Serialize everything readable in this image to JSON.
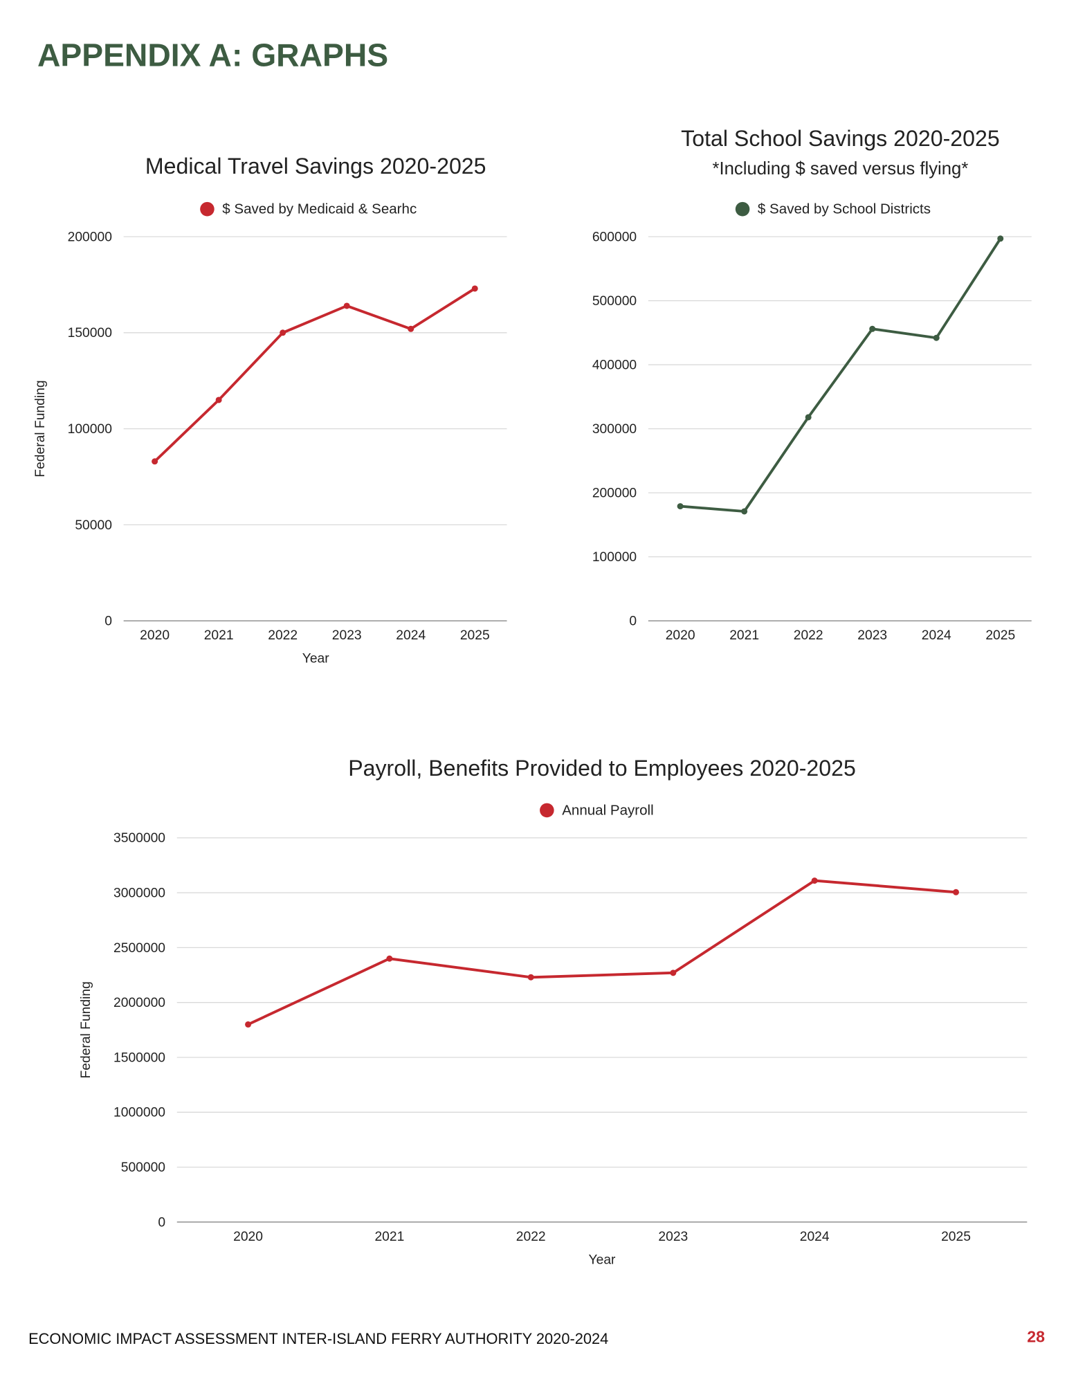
{
  "header": {
    "title": "APPENDIX A: GRAPHS"
  },
  "footer": {
    "text": "ECONOMIC IMPACT ASSESSMENT INTER-ISLAND FERRY AUTHORITY 2020-2024",
    "page_number": "28"
  },
  "colors": {
    "heading": "#3d5c42",
    "red": "#c6282f",
    "green": "#3d5c42",
    "page_number": "#c6282f"
  },
  "chart_data": [
    {
      "type": "line",
      "title": "Medical Travel Savings 2020-2025",
      "xlabel": "Year",
      "ylabel": "Federal Funding",
      "categories": [
        "2020",
        "2021",
        "2022",
        "2023",
        "2024",
        "2025"
      ],
      "yticks": [
        "0",
        "50000",
        "100000",
        "150000",
        "200000"
      ],
      "ylim": [
        0,
        200000
      ],
      "grid": true,
      "legend": "top",
      "series": [
        {
          "name": "$ Saved by Medicaid & Searhc",
          "color": "#c6282f",
          "values": [
            83000,
            115000,
            150000,
            164000,
            152000,
            173000
          ]
        }
      ]
    },
    {
      "type": "line",
      "title": "Total School Savings 2020-2025",
      "subtitle": "*Including $ saved versus flying*",
      "categories": [
        "2020",
        "2021",
        "2022",
        "2023",
        "2024",
        "2025"
      ],
      "yticks": [
        "0",
        "100000",
        "200000",
        "300000",
        "400000",
        "500000",
        "600000"
      ],
      "ylim": [
        0,
        600000
      ],
      "grid": true,
      "legend": "top",
      "series": [
        {
          "name": "$ Saved by School Districts",
          "color": "#3d5c42",
          "values": [
            179000,
            171000,
            318000,
            456000,
            442000,
            597000
          ]
        }
      ]
    },
    {
      "type": "line",
      "title": "Payroll, Benefits Provided to Employees 2020-2025",
      "xlabel": "Year",
      "ylabel": "Federal Funding",
      "categories": [
        "2020",
        "2021",
        "2022",
        "2023",
        "2024",
        "2025"
      ],
      "yticks": [
        "0",
        "500000",
        "1000000",
        "1500000",
        "2000000",
        "2500000",
        "3000000",
        "3500000"
      ],
      "ylim": [
        0,
        3500000
      ],
      "grid": true,
      "legend": "top",
      "series": [
        {
          "name": "Annual Payroll",
          "color": "#c6282f",
          "values": [
            1800000,
            2400000,
            2230000,
            2270000,
            3110000,
            3005000
          ]
        }
      ]
    }
  ]
}
